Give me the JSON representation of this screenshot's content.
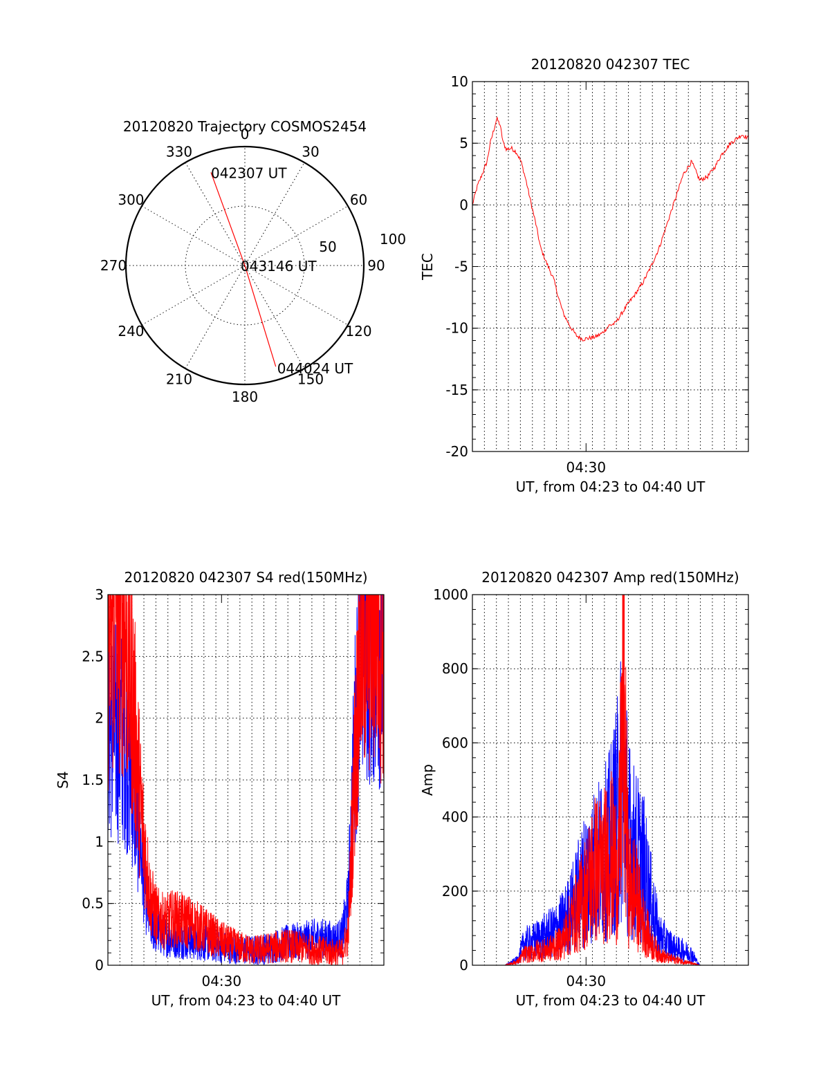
{
  "chart_data": [
    {
      "type": "polar",
      "title": "20120820 Trajectory COSMOS2454",
      "azimuth_labels": [
        "0",
        "30",
        "60",
        "90",
        "120",
        "150",
        "180",
        "210",
        "240",
        "270",
        "300",
        "330"
      ],
      "radial_labels": [
        "50",
        "100"
      ],
      "trajectory": [
        {
          "time_label": "042307 UT",
          "azimuth": 340,
          "elevation": 15
        },
        {
          "time_label": "043146 UT",
          "azimuth": 0,
          "elevation": 90
        },
        {
          "time_label": "044024 UT",
          "azimuth": 163,
          "elevation": 10
        }
      ],
      "line_color": "#ff0000"
    },
    {
      "type": "line",
      "title": "20120820 042307 TEC",
      "xlabel": "UT, from 04:23 to 04:40 UT",
      "ylabel": "TEC",
      "x_tick_label": "04:30",
      "xlim": [
        0,
        17
      ],
      "ylim": [
        -20,
        10
      ],
      "yticks": [
        "10",
        "5",
        "0",
        "-5",
        "-10",
        "-15",
        "-20"
      ],
      "series": [
        {
          "color": "#ff0000",
          "x": [
            0,
            0.3,
            0.6,
            0.9,
            1.1,
            1.3,
            1.5,
            1.7,
            1.9,
            2.1,
            2.4,
            2.7,
            3.0,
            3.3,
            3.6,
            3.9,
            4.2,
            4.6,
            5.0,
            5.3,
            5.6,
            6.0,
            6.4,
            6.8,
            7.2,
            7.6,
            8.0,
            8.4,
            8.8,
            9.2,
            9.6,
            10.0,
            10.5,
            11.0,
            11.5,
            12.0,
            12.5,
            13.0,
            13.5,
            14.0,
            14.5,
            15.0,
            15.3,
            15.6,
            15.9,
            16.3,
            16.6,
            17.0
          ],
          "y": [
            0,
            1.5,
            2.5,
            3.5,
            5.0,
            6.0,
            7.0,
            6.5,
            5.0,
            4.5,
            4.6,
            4.3,
            3.5,
            2.0,
            0.2,
            -1.5,
            -3.5,
            -4.8,
            -6.0,
            -7.5,
            -8.8,
            -9.8,
            -10.6,
            -10.9,
            -10.8,
            -10.7,
            -10.4,
            -9.8,
            -9.6,
            -8.8,
            -8.0,
            -7.3,
            -6.3,
            -5.0,
            -3.5,
            -1.5,
            0.5,
            2.5,
            3.5,
            2.0,
            2.3,
            3.2,
            4.0,
            4.5,
            5.0,
            5.4,
            5.7,
            5.4
          ]
        }
      ]
    },
    {
      "type": "line",
      "title": "20120820 042307 S4 red(150MHz)",
      "xlabel": "UT, from 04:23 to 04:40 UT",
      "ylabel": "S4",
      "x_tick_label": "04:30",
      "xlim": [
        0,
        17
      ],
      "ylim": [
        0,
        3
      ],
      "yticks": [
        "3",
        "2.5",
        "2",
        "1.5",
        "1",
        "0.5",
        "0"
      ],
      "series": [
        {
          "color": "#ff0000",
          "x": [
            0,
            0.5,
            1.0,
            1.5,
            2.0,
            2.3,
            2.6,
            3.0,
            3.5,
            4.0,
            5.0,
            6.0,
            7.0,
            8.0,
            9.0,
            10.0,
            11.0,
            12.0,
            13.0,
            14.0,
            14.4,
            14.8,
            15.2,
            15.6,
            16.0,
            16.5,
            17.0
          ],
          "y": [
            2.6,
            2.9,
            2.8,
            2.2,
            1.3,
            0.9,
            0.55,
            0.4,
            0.35,
            0.38,
            0.35,
            0.28,
            0.2,
            0.15,
            0.12,
            0.14,
            0.16,
            0.14,
            0.12,
            0.1,
            0.1,
            0.25,
            1.6,
            2.7,
            2.8,
            2.9,
            2.7
          ]
        },
        {
          "color": "#0000ff",
          "x": [
            0,
            0.5,
            1.0,
            1.5,
            2.0,
            2.3,
            2.6,
            3.0,
            3.5,
            4.0,
            5.0,
            6.0,
            7.0,
            8.0,
            9.0,
            10.0,
            11.0,
            12.0,
            13.0,
            14.0,
            14.4,
            14.8,
            15.2,
            15.6,
            16.0,
            16.5,
            17.0
          ],
          "y": [
            1.9,
            1.9,
            1.85,
            1.5,
            1.0,
            0.6,
            0.35,
            0.28,
            0.24,
            0.22,
            0.2,
            0.18,
            0.15,
            0.13,
            0.12,
            0.14,
            0.18,
            0.2,
            0.22,
            0.2,
            0.22,
            0.5,
            1.8,
            2.6,
            2.7,
            2.7,
            2.6
          ]
        }
      ]
    },
    {
      "type": "line",
      "title": "20120820 042307 Amp red(150MHz)",
      "xlabel": "UT, from 04:23 to 04:40 UT",
      "ylabel": "Amp",
      "x_tick_label": "04:30",
      "xlim": [
        0,
        17
      ],
      "ylim": [
        0,
        1000
      ],
      "yticks": [
        "1000",
        "800",
        "600",
        "400",
        "200",
        "0"
      ],
      "series": [
        {
          "color": "#ff0000",
          "x": [
            0,
            2.0,
            2.8,
            3.2,
            3.6,
            4.0,
            4.5,
            5.0,
            5.5,
            6.0,
            6.5,
            7.0,
            7.5,
            8.0,
            8.5,
            9.0,
            9.3,
            9.6,
            10.0,
            10.5,
            11.0,
            11.5,
            12.0,
            12.5,
            13.0,
            13.5,
            14.0,
            17.0
          ],
          "y": [
            0,
            0,
            10,
            30,
            30,
            40,
            40,
            50,
            60,
            110,
            150,
            200,
            260,
            260,
            300,
            250,
            720,
            220,
            200,
            120,
            60,
            30,
            20,
            15,
            10,
            5,
            0,
            0
          ]
        },
        {
          "color": "#0000ff",
          "x": [
            0,
            2.0,
            2.8,
            3.2,
            3.6,
            4.0,
            4.5,
            5.0,
            5.5,
            6.0,
            6.5,
            7.0,
            7.5,
            8.0,
            8.5,
            9.0,
            9.3,
            9.6,
            10.0,
            10.5,
            11.0,
            11.5,
            12.0,
            12.5,
            13.0,
            13.5,
            14.0,
            17.0
          ],
          "y": [
            0,
            0,
            15,
            60,
            60,
            70,
            80,
            90,
            110,
            140,
            190,
            240,
            270,
            290,
            330,
            420,
            550,
            350,
            300,
            270,
            170,
            80,
            60,
            45,
            40,
            30,
            0,
            0
          ]
        }
      ]
    }
  ]
}
